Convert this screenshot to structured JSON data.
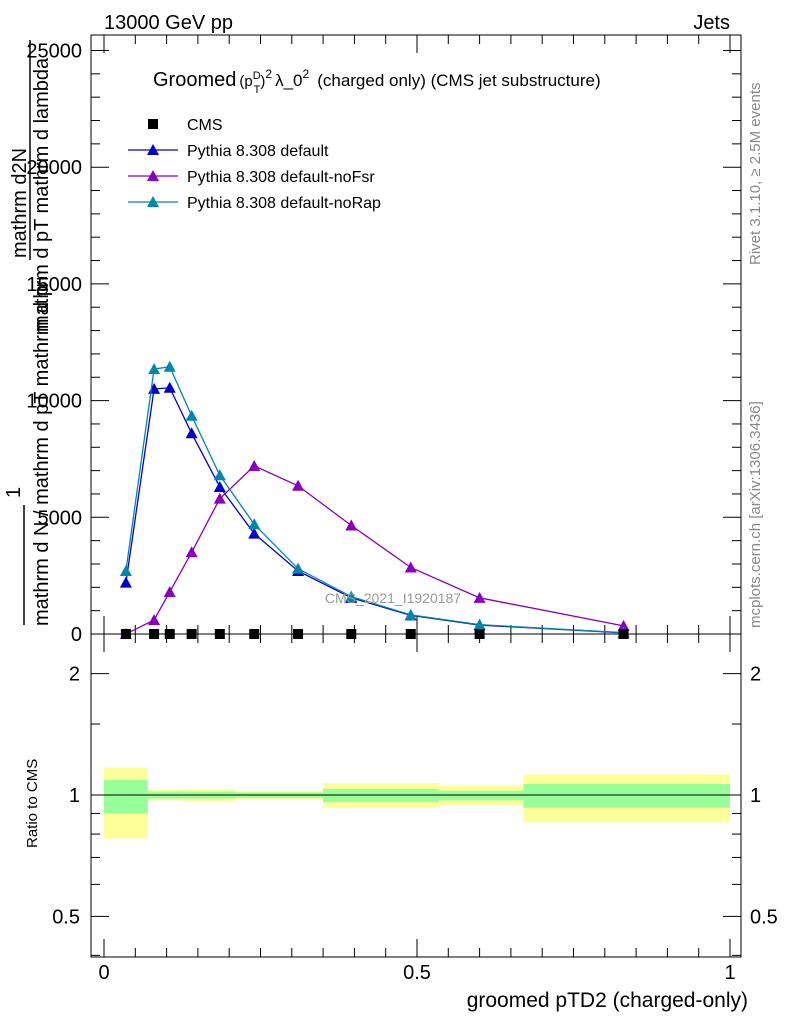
{
  "header": {
    "left": "13000 GeV pp",
    "right": "Jets"
  },
  "side_text": {
    "rivet": "Rivet 3.1.10, ≥ 2.5M events",
    "mcplots": "mcplots.cern.ch [arXiv:1306.3436]"
  },
  "watermark": "CMS_2021_I1920187",
  "chart_data": [
    {
      "type": "line",
      "title_parts": {
        "pre": "Groomed",
        "base": "(p",
        "sup": "D",
        "sub": "T",
        "close": ")",
        "pow": "2",
        "mid": "λ_0",
        "pow2": "2",
        "post": "(charged only) (CMS jet substructure)"
      },
      "ylabel": {
        "line1": "mathrm d",
        "line1_sup": "2",
        "line1_rest": "N",
        "line2": "mathrm d p",
        "line2_sub": "T",
        "line2_rest": " mathrm d lambda",
        "prefix": "1",
        "frac_bottom": "mathrm d N / mathrm d p",
        "frac_bottom_sub": "T",
        "frac_bottom_rest": " mathrm d p"
      },
      "ylim": [
        0,
        26000
      ],
      "yticks": [
        0,
        5000,
        10000,
        15000,
        20000,
        25000
      ],
      "ytick_labels": [
        "0",
        "5000",
        "10000",
        "15000",
        "20000",
        "25000"
      ],
      "xlim": [
        0,
        1
      ],
      "legend": [
        {
          "name": "CMS",
          "color": "#000000",
          "marker": "square"
        },
        {
          "name": "Pythia 8.308 default",
          "color": "#0000cc",
          "marker": "triangle"
        },
        {
          "name": "Pythia 8.308 default-noFsr",
          "color": "#8800bb",
          "marker": "triangle"
        },
        {
          "name": "Pythia 8.308 default-noRap",
          "color": "#0088aa",
          "marker": "triangle"
        }
      ],
      "legend_position": "top-left",
      "cms": {
        "x": [
          0.035,
          0.08,
          0.105,
          0.14,
          0.185,
          0.24,
          0.31,
          0.395,
          0.49,
          0.6,
          0.83
        ],
        "y": [
          0,
          0,
          0,
          0,
          0,
          0,
          0,
          0,
          0,
          0,
          0
        ]
      },
      "series": [
        {
          "name": "Pythia 8.308 default",
          "color": "#0000cc",
          "x": [
            0.035,
            0.08,
            0.105,
            0.14,
            0.185,
            0.24,
            0.31,
            0.395,
            0.49,
            0.6,
            0.83
          ],
          "y": [
            2200,
            10500,
            10550,
            8600,
            6300,
            4300,
            2700,
            1550,
            800,
            380,
            50
          ]
        },
        {
          "name": "Pythia 8.308 default-noFsr",
          "color": "#8800bb",
          "x": [
            0.035,
            0.08,
            0.105,
            0.14,
            0.185,
            0.24,
            0.31,
            0.395,
            0.49,
            0.6,
            0.83
          ],
          "y": [
            0,
            600,
            1800,
            3500,
            5800,
            7200,
            6350,
            4650,
            2850,
            1550,
            350
          ]
        },
        {
          "name": "Pythia 8.308 default-noRap",
          "color": "#0088aa",
          "x": [
            0.035,
            0.08,
            0.105,
            0.14,
            0.185,
            0.24,
            0.31,
            0.395,
            0.49,
            0.6,
            0.83
          ],
          "y": [
            2700,
            11350,
            11450,
            9350,
            6800,
            4700,
            2800,
            1600,
            820,
            400,
            60
          ]
        }
      ]
    },
    {
      "type": "area",
      "ylabel": "Ratio to CMS",
      "xlabel": "groomed pTD2 (charged-only)",
      "ylim": [
        0.35,
        2.25
      ],
      "yticks": [
        0.5,
        1,
        2
      ],
      "ytick_labels": [
        "0.5",
        "1",
        "2"
      ],
      "xlim": [
        0,
        1
      ],
      "xticks": [
        0,
        0.5,
        1
      ],
      "xtick_labels": [
        "0",
        "0.5",
        "1"
      ],
      "bands": {
        "edges": [
          0,
          0.07,
          0.125,
          0.21,
          0.35,
          0.535,
          0.67,
          1.0
        ],
        "yellow_lo": [
          0.78,
          0.97,
          0.965,
          0.975,
          0.93,
          0.945,
          0.855,
          0.885
        ],
        "yellow_hi": [
          1.17,
          1.03,
          1.035,
          1.025,
          1.07,
          1.055,
          1.125,
          1.095
        ],
        "green_lo": [
          0.9,
          0.98,
          0.98,
          0.985,
          0.96,
          0.97,
          0.93,
          0.945
        ],
        "green_hi": [
          1.09,
          1.02,
          1.02,
          1.015,
          1.035,
          1.025,
          1.065,
          1.06
        ]
      }
    }
  ]
}
